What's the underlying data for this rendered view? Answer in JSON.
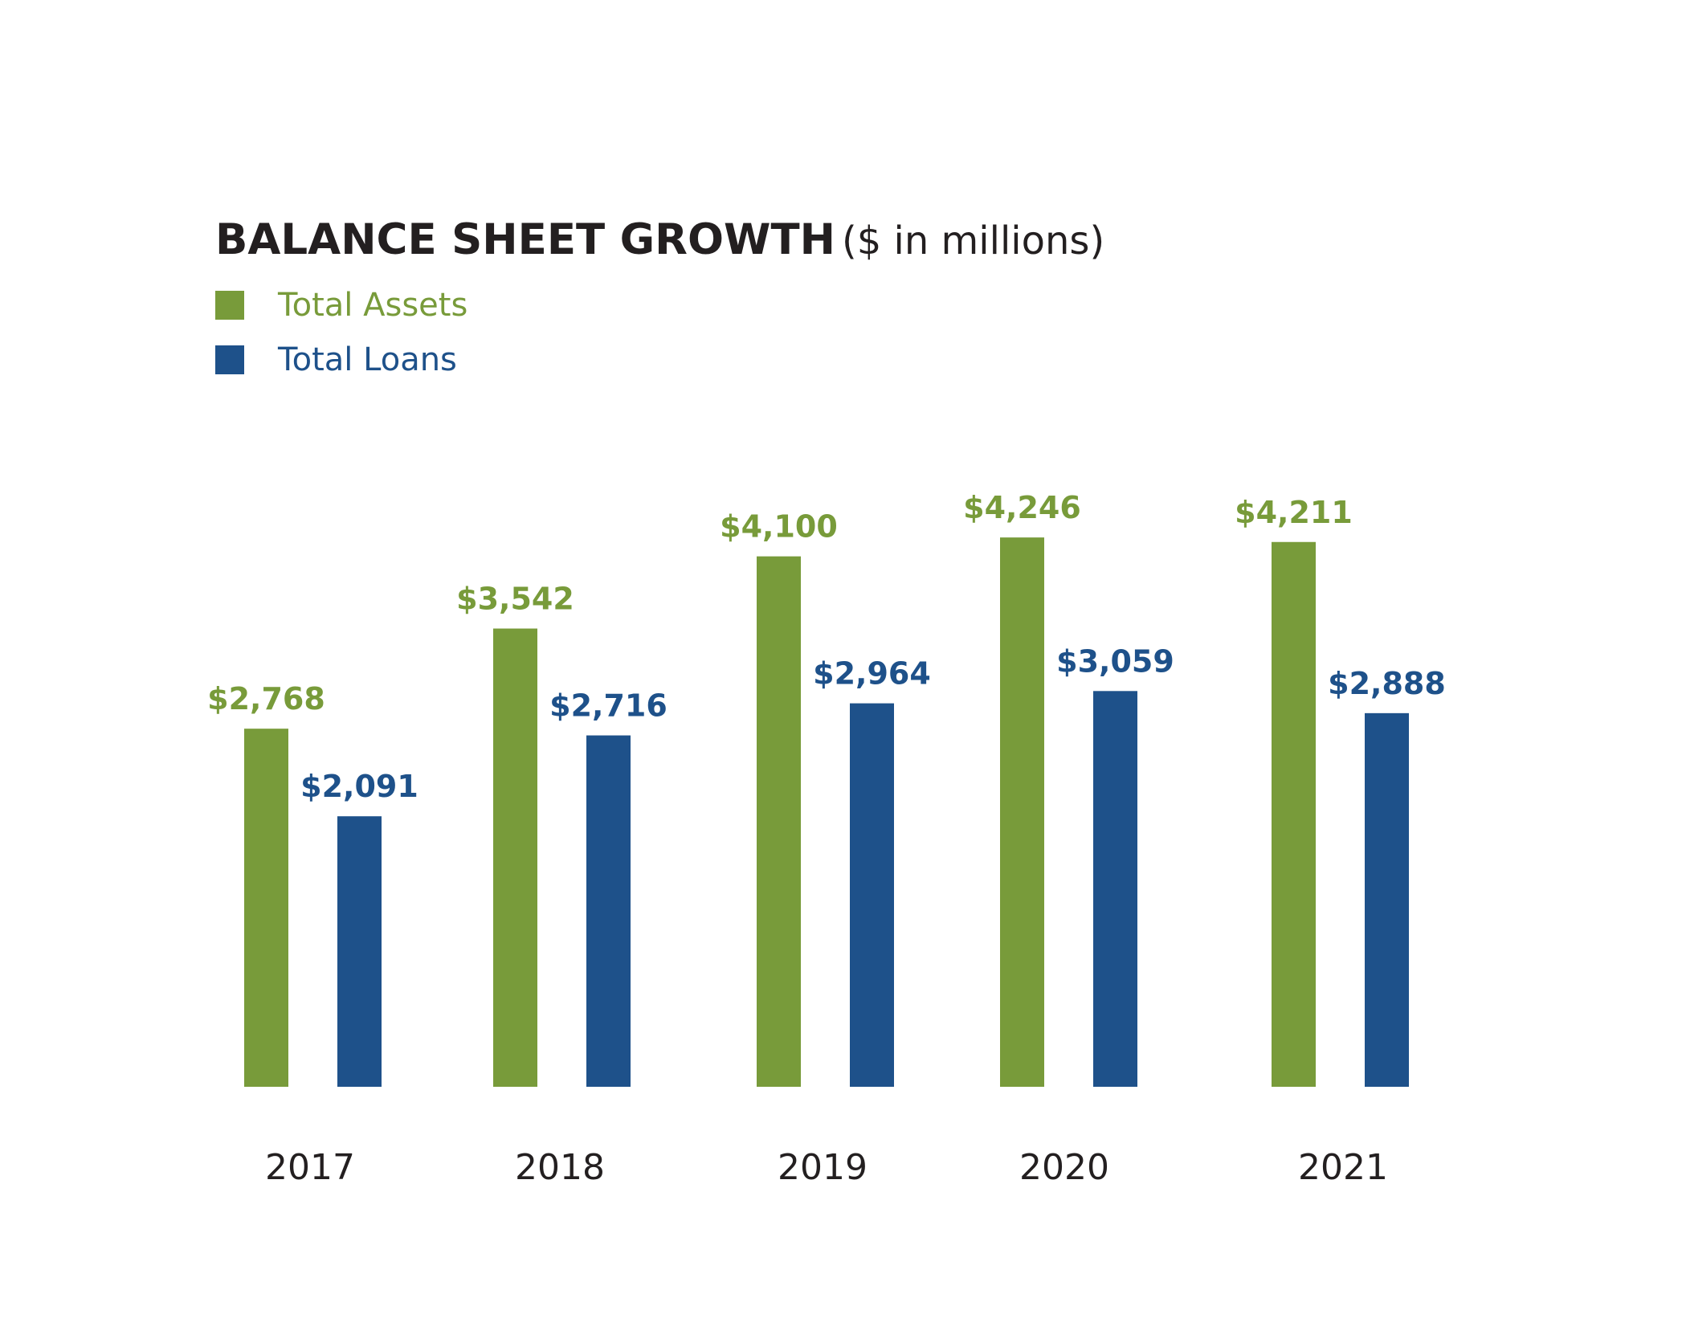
{
  "chart_data": {
    "type": "bar",
    "title": "BALANCE SHEET GROWTH",
    "subtitle": "($ in millions)",
    "categories": [
      "2017",
      "2018",
      "2019",
      "2020",
      "2021"
    ],
    "series": [
      {
        "name": "Total Assets",
        "color": "#789b3a",
        "values": [
          2768,
          3542,
          4100,
          4246,
          4211
        ],
        "labels": [
          "$2,768",
          "$3,542",
          "$4,100",
          "$4,246",
          "$4,211"
        ]
      },
      {
        "name": "Total Loans",
        "color": "#1e518a",
        "values": [
          2091,
          2716,
          2964,
          3059,
          2888
        ],
        "labels": [
          "$2,091",
          "$2,716",
          "$2,964",
          "$3,059",
          "$2,888"
        ]
      }
    ],
    "xlabel": "",
    "ylabel": "",
    "ylim": [
      0,
      4700
    ],
    "grid": false,
    "legend": "top-left"
  },
  "colors": {
    "title": "#231f20",
    "axis_text": "#231f20"
  }
}
